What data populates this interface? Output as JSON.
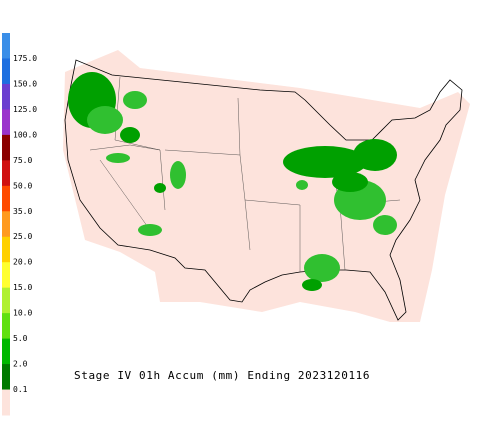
{
  "legend": {
    "labels": [
      "175.0",
      "150.0",
      "125.0",
      "100.0",
      "75.0",
      "50.0",
      "35.0",
      "25.0",
      "20.0",
      "15.0",
      "10.0",
      "5.0",
      "2.0",
      "0.1"
    ],
    "colors": [
      "#3a8ee8",
      "#1e6fe0",
      "#6a3fd0",
      "#9a34cc",
      "#8b0000",
      "#d01010",
      "#ff4a00",
      "#ff9a20",
      "#ffd000",
      "#ffff30",
      "#b0f030",
      "#60e010",
      "#00b800",
      "#007a00",
      "#fde3dc"
    ]
  },
  "caption": "Stage IV 01h Accum (mm) Ending 2023120116"
}
